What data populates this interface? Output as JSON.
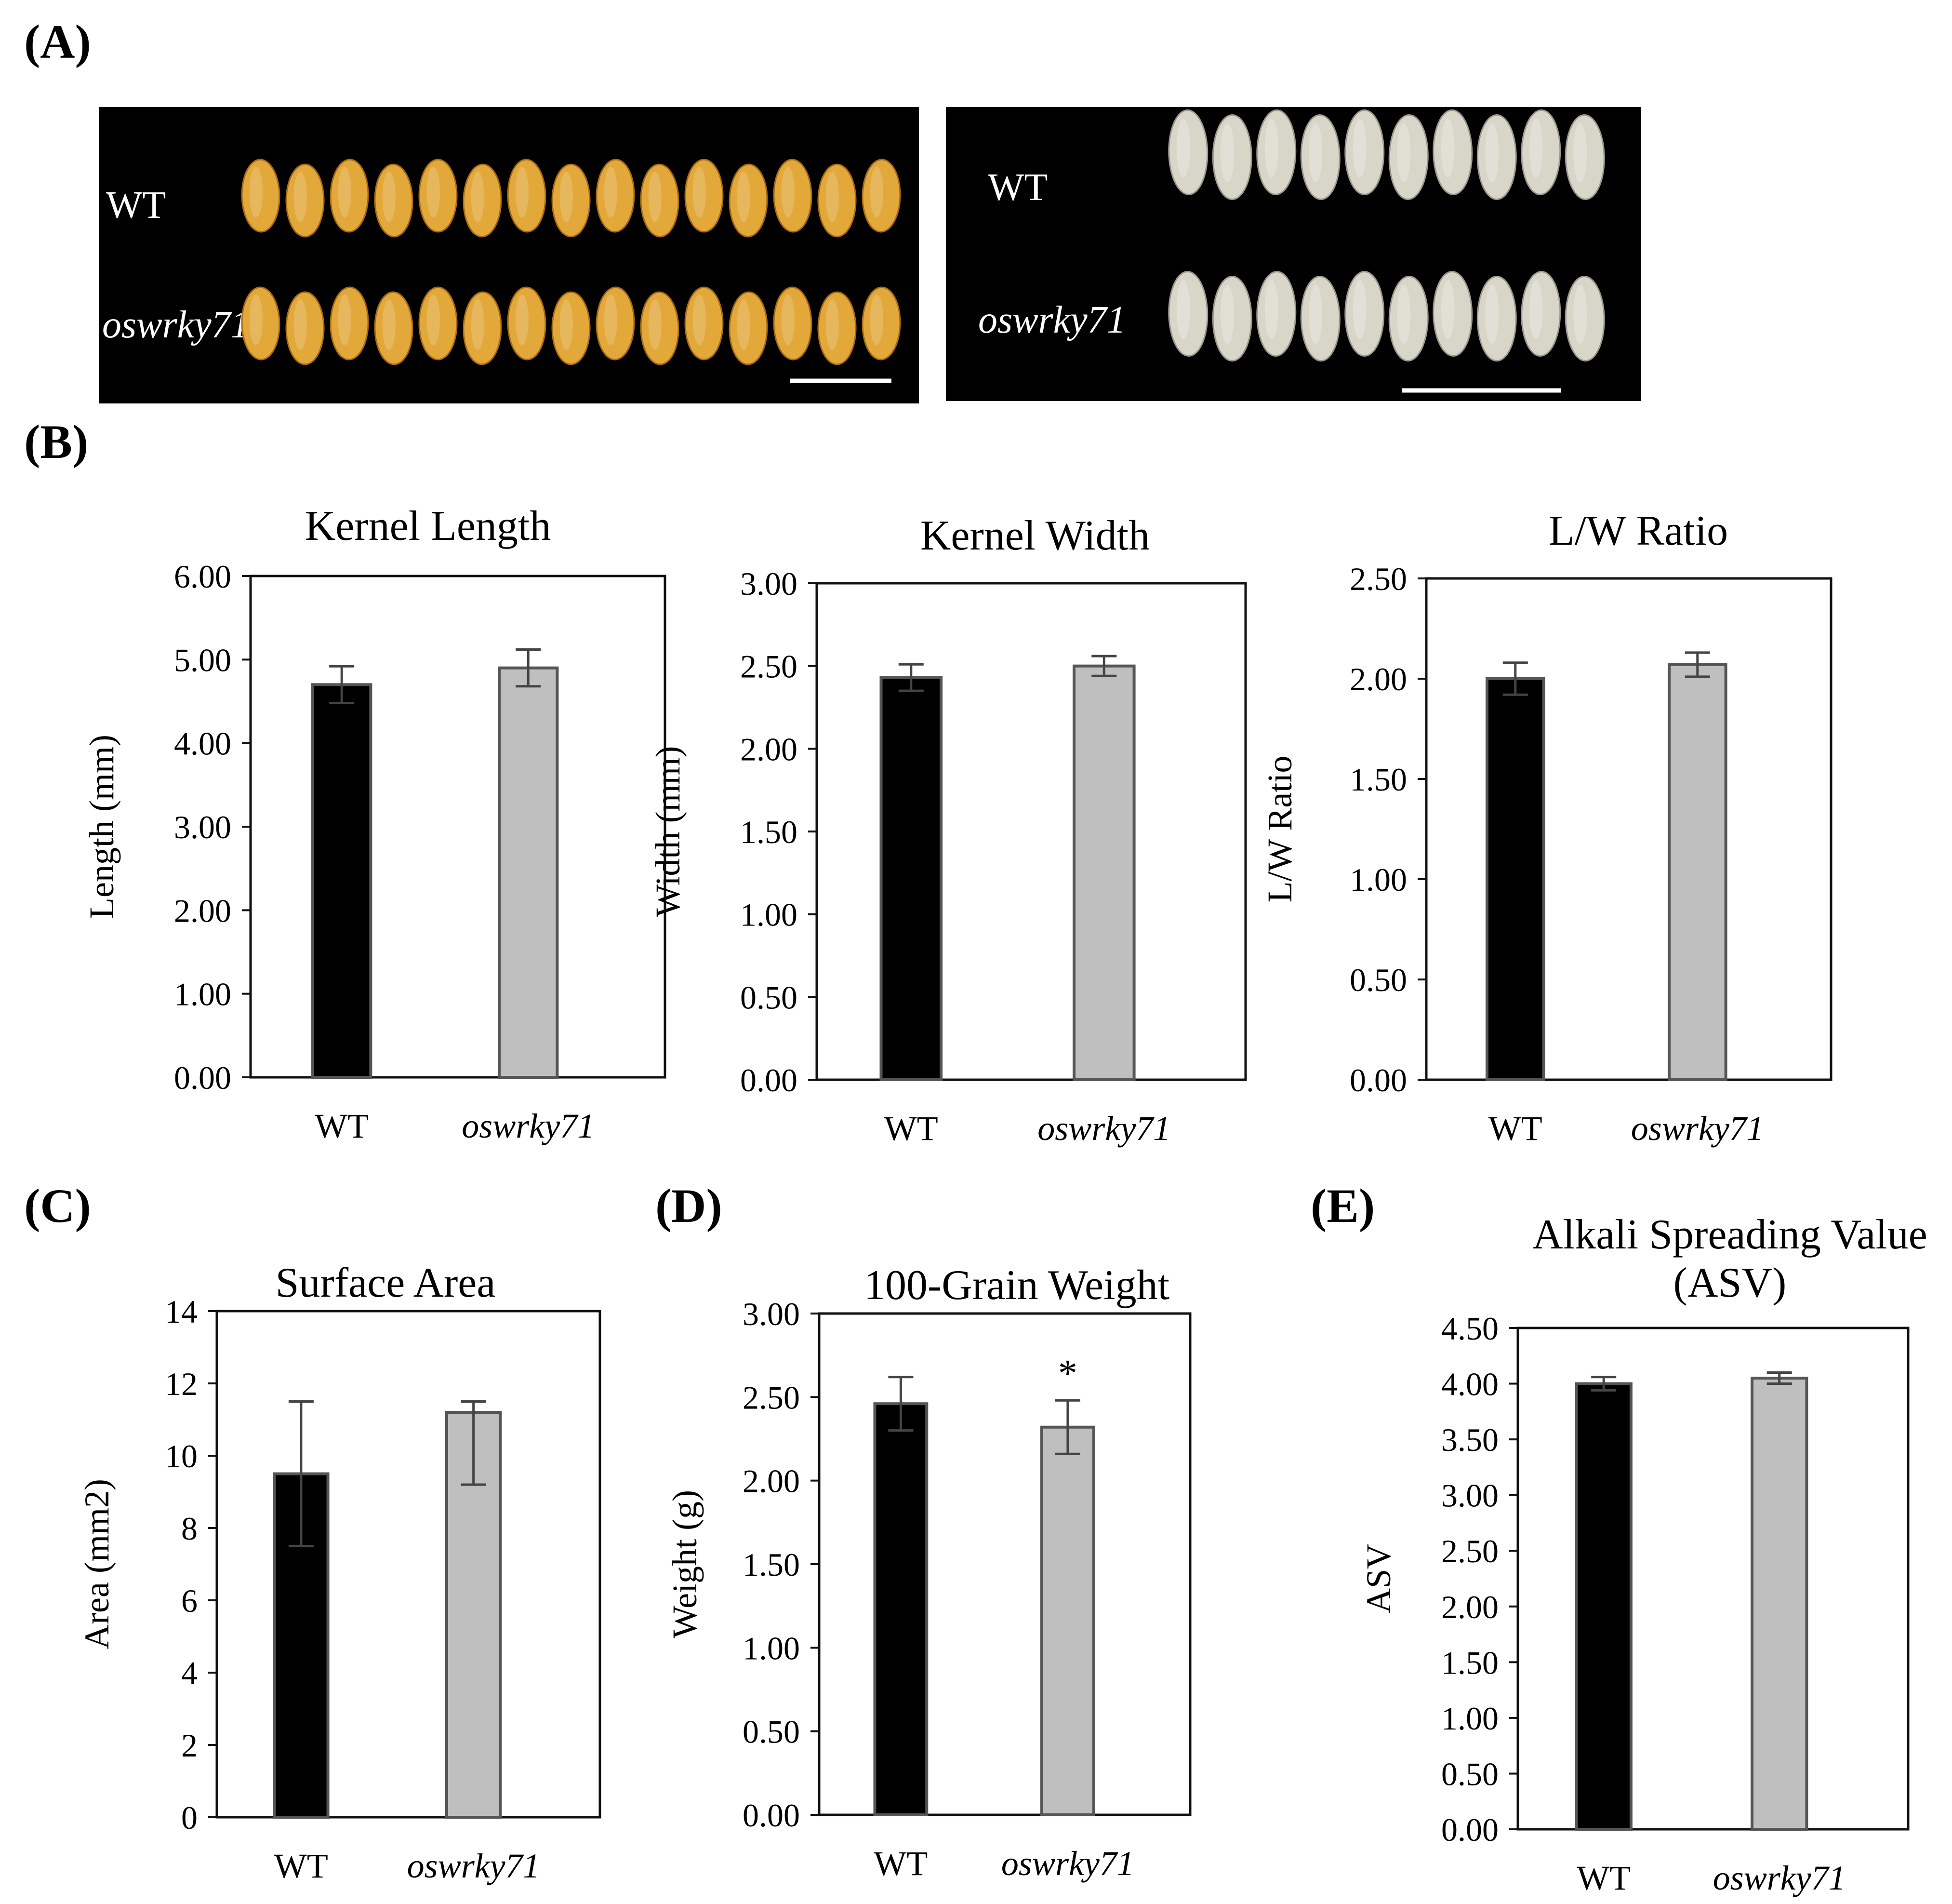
{
  "panel_labels": [
    "(A)",
    "(B)",
    "(C)",
    "(D)",
    "(E)"
  ],
  "photos": [
    {
      "row_labels": [
        "WT",
        "oswrky71"
      ],
      "kind": "rough",
      "wt_count": 15,
      "mut_count": 15,
      "grain_color": "#e2a83a",
      "background": "#000000"
    },
    {
      "row_labels": [
        "WT",
        "oswrky71"
      ],
      "kind": "polished",
      "wt_count": 10,
      "mut_count": 10,
      "grain_color": "#d8d6c8",
      "background": "#000000"
    }
  ],
  "colors": {
    "wt": "#000000",
    "mutant": "#bfbfbf",
    "axis": "#111111"
  },
  "chart_data": [
    {
      "id": "kernel-length",
      "type": "bar",
      "title": [
        "Kernel Length"
      ],
      "categories": [
        "WT",
        "oswrky71"
      ],
      "values": [
        4.7,
        4.9
      ],
      "errors": [
        0.22,
        0.22
      ],
      "ylabel": "Length (mm)",
      "xlabel": "",
      "ylim": [
        0,
        6
      ],
      "yticks": [
        "0.00",
        "1.00",
        "2.00",
        "3.00",
        "4.00",
        "5.00",
        "6.00"
      ],
      "annotations": [
        "",
        ""
      ]
    },
    {
      "id": "kernel-width",
      "type": "bar",
      "title": [
        "Kernel Width"
      ],
      "categories": [
        "WT",
        "oswrky71"
      ],
      "values": [
        2.43,
        2.5
      ],
      "errors": [
        0.08,
        0.06
      ],
      "ylabel": "Width (mm)",
      "xlabel": "",
      "ylim": [
        0,
        3
      ],
      "yticks": [
        "0.00",
        "0.50",
        "1.00",
        "1.50",
        "2.00",
        "2.50",
        "3.00"
      ],
      "annotations": [
        "",
        ""
      ]
    },
    {
      "id": "lw-ratio",
      "type": "bar",
      "title": [
        "L/W Ratio"
      ],
      "categories": [
        "WT",
        "oswrky71"
      ],
      "values": [
        2.0,
        2.07
      ],
      "errors": [
        0.08,
        0.06
      ],
      "ylabel": "L/W Ratio",
      "xlabel": "",
      "ylim": [
        0,
        2.5
      ],
      "yticks": [
        "0.00",
        "0.50",
        "1.00",
        "1.50",
        "2.00",
        "2.50"
      ],
      "annotations": [
        "",
        ""
      ]
    },
    {
      "id": "surface-area",
      "type": "bar",
      "title": [
        "Surface Area"
      ],
      "categories": [
        "WT",
        "oswrky71"
      ],
      "values": [
        9.5,
        11.2
      ],
      "errors": [
        2.0,
        2.0
      ],
      "error_upper": [
        2.0,
        0.3
      ],
      "ylabel": "Area (mm2)",
      "xlabel": "",
      "ylim": [
        0,
        14
      ],
      "yticks": [
        "0",
        "2",
        "4",
        "6",
        "8",
        "10",
        "12",
        "14"
      ],
      "annotations": [
        "",
        ""
      ]
    },
    {
      "id": "grain-weight",
      "type": "bar",
      "title": [
        "100-Grain Weight"
      ],
      "categories": [
        "WT",
        "oswrky71"
      ],
      "values": [
        2.46,
        2.32
      ],
      "errors": [
        0.16,
        0.16
      ],
      "ylabel": "Weight (g)",
      "xlabel": "",
      "ylim": [
        0,
        3
      ],
      "yticks": [
        "0.00",
        "0.50",
        "1.00",
        "1.50",
        "2.00",
        "2.50",
        "3.00"
      ],
      "annotations": [
        "",
        "*"
      ]
    },
    {
      "id": "asv",
      "type": "bar",
      "title": [
        "Alkali Spreading Value",
        "(ASV)"
      ],
      "categories": [
        "WT",
        "oswrky71"
      ],
      "values": [
        4.0,
        4.05
      ],
      "errors": [
        0.06,
        0.05
      ],
      "ylabel": "ASV",
      "xlabel": "",
      "ylim": [
        0,
        4.5
      ],
      "yticks": [
        "0.00",
        "0.50",
        "1.00",
        "1.50",
        "2.00",
        "2.50",
        "3.00",
        "3.50",
        "4.00",
        "4.50"
      ],
      "annotations": [
        "",
        ""
      ]
    }
  ]
}
